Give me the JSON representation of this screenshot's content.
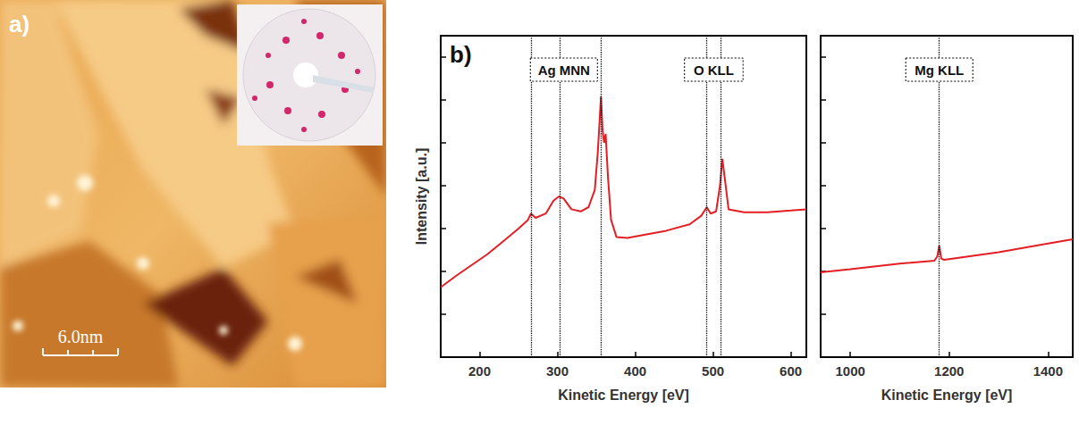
{
  "panel_a": {
    "label": "a)",
    "scale_bar_label": "6.0nm"
  },
  "panel_b_label": "b)",
  "chart_data": [
    {
      "type": "line",
      "x_label": "Kinetic Energy [eV]",
      "y_label": "Intensity [a.u.]",
      "color": "#e31e24",
      "tick_labels": "x",
      "x": [
        150,
        170,
        190,
        210,
        230,
        250,
        262,
        266,
        272,
        285,
        295,
        302,
        308,
        318,
        330,
        340,
        348,
        352,
        356,
        358,
        360,
        362,
        365,
        369,
        376,
        390,
        410,
        440,
        470,
        485,
        492,
        497,
        504,
        509,
        512,
        515,
        520,
        540,
        570,
        600,
        620
      ],
      "values": [
        1.63,
        1.9,
        2.15,
        2.4,
        2.7,
        3.0,
        3.2,
        3.35,
        3.25,
        3.35,
        3.65,
        3.75,
        3.7,
        3.45,
        3.4,
        3.5,
        3.9,
        4.8,
        6.08,
        5.3,
        5.0,
        5.21,
        4.2,
        3.2,
        2.8,
        2.78,
        2.85,
        2.95,
        3.1,
        3.3,
        3.5,
        3.35,
        3.4,
        4.0,
        4.63,
        4.2,
        3.45,
        3.38,
        3.38,
        3.42,
        3.45
      ],
      "xlim": [
        150,
        620
      ],
      "xticks": [
        200,
        300,
        400,
        500,
        600
      ],
      "ylim": [
        0,
        7.5
      ],
      "yticks": [
        0,
        1,
        2,
        3,
        4,
        5,
        6,
        7
      ],
      "annotations": [
        {
          "text": "Ag MNN",
          "x": [
            266,
            303,
            356
          ]
        },
        {
          "text": "O KLL",
          "x": [
            492,
            510
          ]
        }
      ]
    },
    {
      "type": "line",
      "x_label": "Kinetic Energy [eV]",
      "color": "#e31e24",
      "tick_labels": "x",
      "x": [
        940,
        1000,
        1100,
        1170,
        1176,
        1180,
        1184,
        1190,
        1300,
        1400,
        1450
      ],
      "values": [
        1.98,
        2.05,
        2.18,
        2.25,
        2.35,
        2.6,
        2.3,
        2.27,
        2.45,
        2.65,
        2.75
      ],
      "xlim": [
        940,
        1450
      ],
      "xticks": [
        1000,
        1200,
        1400
      ],
      "ylim": [
        0,
        7.5
      ],
      "yticks": [
        0,
        1,
        2,
        3,
        4,
        5,
        6,
        7
      ],
      "annotations": [
        {
          "text": "Mg KLL",
          "x": [
            1180
          ]
        }
      ]
    }
  ]
}
